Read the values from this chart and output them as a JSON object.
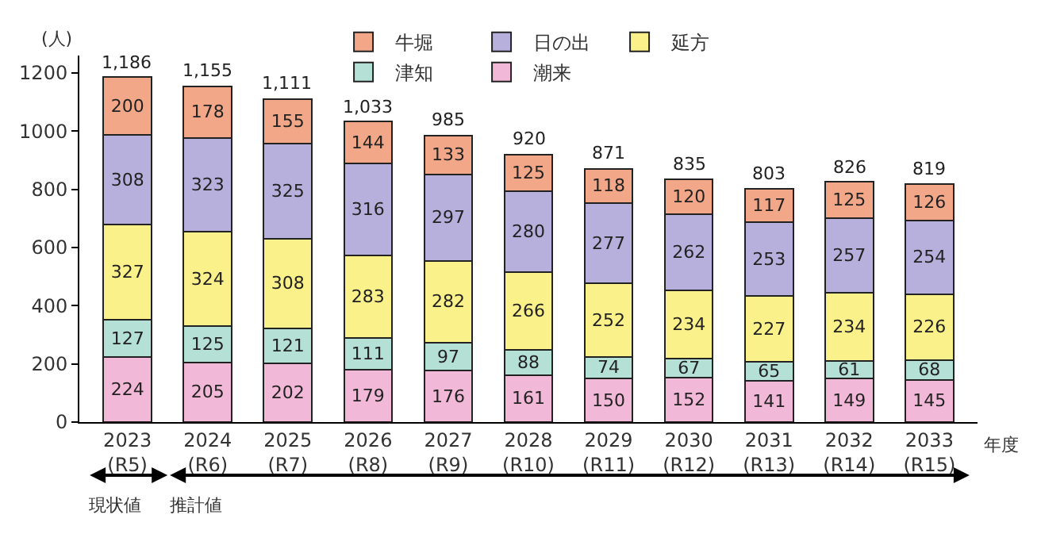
{
  "chart_data": {
    "type": "bar",
    "stacked": true,
    "ylabel": "(人)",
    "xlabel": "年度",
    "categories": [
      "2023\n(R5)",
      "2024\n(R6)",
      "2025\n(R7)",
      "2026\n(R8)",
      "2027\n(R9)",
      "2028\n(R10)",
      "2029\n(R11)",
      "2030\n(R12)",
      "2031\n(R13)",
      "2032\n(R14)",
      "2033\n(R15)"
    ],
    "series": [
      {
        "name": "潮来",
        "color": "#f2b8d8",
        "values": [
          224,
          205,
          202,
          179,
          176,
          161,
          150,
          152,
          141,
          149,
          145
        ]
      },
      {
        "name": "津知",
        "color": "#b5e0d6",
        "values": [
          127,
          125,
          121,
          111,
          97,
          88,
          74,
          67,
          65,
          61,
          68
        ]
      },
      {
        "name": "延方",
        "color": "#faf18a",
        "values": [
          327,
          324,
          308,
          283,
          282,
          266,
          252,
          234,
          227,
          234,
          226
        ]
      },
      {
        "name": "日の出",
        "color": "#b8b0dc",
        "values": [
          308,
          323,
          325,
          316,
          297,
          280,
          277,
          262,
          253,
          257,
          254
        ]
      },
      {
        "name": "牛堀",
        "color": "#f2a888",
        "values": [
          200,
          178,
          155,
          144,
          133,
          125,
          118,
          120,
          117,
          125,
          126
        ]
      }
    ],
    "totals": [
      "1,186",
      "1,155",
      "1,111",
      "1,033",
      "985",
      "920",
      "871",
      "835",
      "803",
      "826",
      "819"
    ],
    "data_labels": true,
    "ylim": [
      0,
      1260
    ],
    "yticks": [
      0,
      200,
      400,
      600,
      800,
      1000,
      1200
    ],
    "grid": false,
    "legend": "top right",
    "annotations": [
      "現状値",
      "推計値"
    ]
  }
}
